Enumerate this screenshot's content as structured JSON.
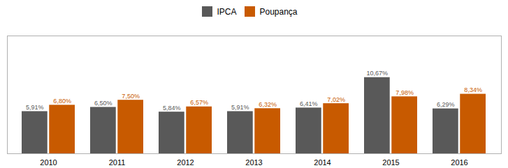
{
  "chart_data": {
    "type": "bar",
    "categories": [
      "2010",
      "2011",
      "2012",
      "2013",
      "2014",
      "2015",
      "2016"
    ],
    "series": [
      {
        "name": "IPCA",
        "color": "#595959",
        "values": [
          5.91,
          6.5,
          5.84,
          5.91,
          6.41,
          10.67,
          6.29
        ],
        "value_labels": [
          "5,91%",
          "6,50%",
          "5,84%",
          "5,91%",
          "6,41%",
          "10,67%",
          "6,29%"
        ]
      },
      {
        "name": "Poupança",
        "color": "#C85A00",
        "values": [
          6.8,
          7.5,
          6.57,
          6.32,
          7.02,
          7.98,
          8.34
        ],
        "value_labels": [
          "6,80%",
          "7,50%",
          "6,57%",
          "6,32%",
          "7,02%",
          "7,98%",
          "8,34%"
        ]
      }
    ],
    "ylim": [
      0,
      16.5
    ],
    "grid": false,
    "legend": "top",
    "data_labels": true,
    "tick_labels": "x"
  }
}
